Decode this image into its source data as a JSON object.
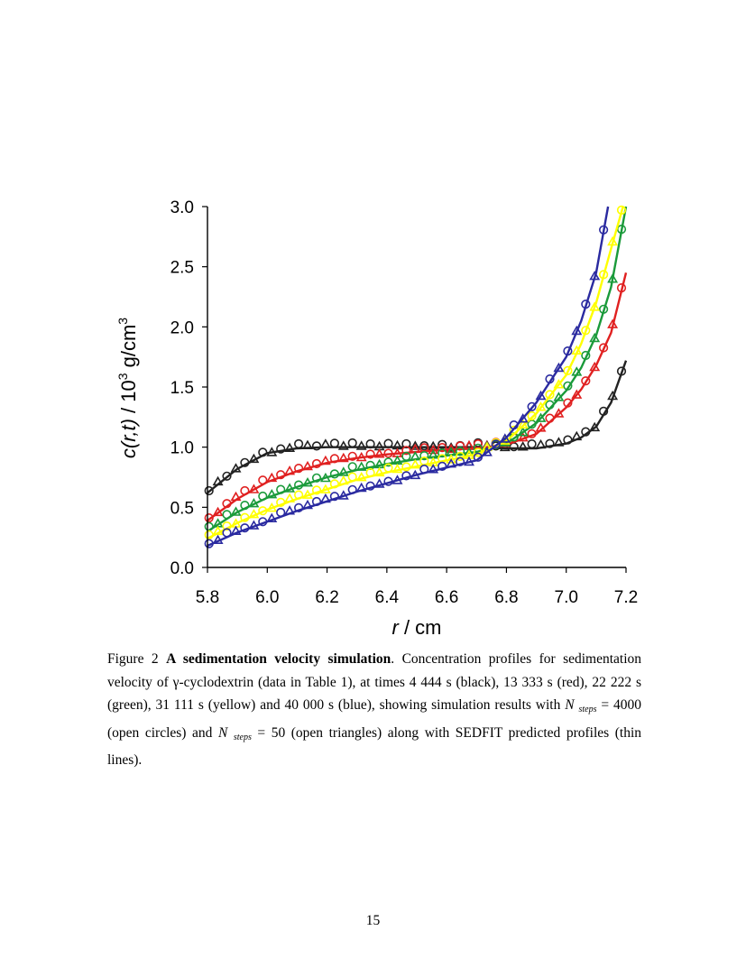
{
  "chart_data": {
    "type": "scatter",
    "xlabel": "r / cm",
    "ylabel": "c(r,t)  / 10^3 g/cm^3",
    "xlim": [
      5.8,
      7.2
    ],
    "ylim": [
      0.0,
      3.0
    ],
    "xticks": [
      "5.8",
      "6.0",
      "6.2",
      "6.4",
      "6.6",
      "6.8",
      "7.0",
      "7.2"
    ],
    "yticks": [
      "0.0",
      "0.5",
      "1.0",
      "1.5",
      "2.0",
      "2.5",
      "3.0"
    ],
    "grid": false,
    "legend": "none",
    "markers": {
      "circles": "N steps = 4000",
      "triangles": "N steps = 50",
      "lines": "SEDFIT predicted profiles"
    },
    "series": [
      {
        "time_s": 4444,
        "color": "#222222",
        "x": [
          5.8,
          5.9,
          6.0,
          6.1,
          6.2,
          6.3,
          6.4,
          6.5,
          6.6,
          6.7,
          6.8,
          6.9,
          7.0,
          7.05,
          7.1,
          7.15,
          7.2
        ],
        "y": [
          0.62,
          0.82,
          0.95,
          0.99,
          1.0,
          1.0,
          1.0,
          1.0,
          1.0,
          1.0,
          0.99,
          0.99,
          1.03,
          1.08,
          1.17,
          1.37,
          1.72
        ]
      },
      {
        "time_s": 13333,
        "color": "#e02020",
        "x": [
          5.8,
          5.9,
          6.0,
          6.1,
          6.2,
          6.3,
          6.4,
          6.5,
          6.6,
          6.7,
          6.8,
          6.9,
          7.0,
          7.05,
          7.1,
          7.15,
          7.2
        ],
        "y": [
          0.39,
          0.57,
          0.71,
          0.8,
          0.87,
          0.91,
          0.94,
          0.96,
          0.98,
          0.99,
          1.02,
          1.11,
          1.33,
          1.48,
          1.68,
          1.95,
          2.45
        ]
      },
      {
        "time_s": 22222,
        "color": "#1a9a3a",
        "x": [
          5.8,
          5.9,
          6.0,
          6.1,
          6.2,
          6.3,
          6.4,
          6.5,
          6.6,
          6.7,
          6.8,
          6.9,
          7.0,
          7.05,
          7.1,
          7.15,
          7.2
        ],
        "y": [
          0.3,
          0.46,
          0.58,
          0.67,
          0.75,
          0.81,
          0.86,
          0.9,
          0.93,
          0.96,
          1.03,
          1.2,
          1.47,
          1.66,
          1.93,
          2.33,
          3.0
        ]
      },
      {
        "time_s": 31111,
        "color": "#ffff00",
        "x": [
          5.8,
          5.9,
          6.0,
          6.1,
          6.2,
          6.3,
          6.4,
          6.5,
          6.6,
          6.7,
          6.8,
          6.9,
          7.0,
          7.05,
          7.1,
          7.15,
          7.19
        ],
        "y": [
          0.24,
          0.37,
          0.48,
          0.57,
          0.65,
          0.73,
          0.79,
          0.84,
          0.89,
          0.94,
          1.05,
          1.28,
          1.6,
          1.86,
          2.2,
          2.65,
          3.0
        ]
      },
      {
        "time_s": 40000,
        "color": "#2a2aa0",
        "x": [
          5.8,
          5.9,
          6.0,
          6.1,
          6.2,
          6.3,
          6.4,
          6.5,
          6.6,
          6.7,
          6.8,
          6.9,
          7.0,
          7.05,
          7.1,
          7.14
        ],
        "y": [
          0.18,
          0.29,
          0.38,
          0.47,
          0.55,
          0.63,
          0.7,
          0.77,
          0.83,
          0.89,
          1.08,
          1.37,
          1.75,
          2.05,
          2.45,
          3.0
        ]
      }
    ]
  },
  "caption": {
    "label": "Figure 2",
    "title": "A sedimentation velocity simulation",
    "text_1": ". Concentration profiles for sedimentation velocity of ",
    "gamma": "γ",
    "text_2": "-cyclodextrin (data in Table 1), at times 4 444 s (black), 13 333 s (red), 22 222 s (green), 31 111 s (yellow) and 40 000 s (blue), showing simulation results with ",
    "n_symbol": "N",
    "steps_sub": "steps",
    "text_3": " = 4000 (open circles) and ",
    "text_4": " = 50 (open triangles) along with SEDFIT predicted profiles (thin lines)."
  },
  "page_number": "15"
}
